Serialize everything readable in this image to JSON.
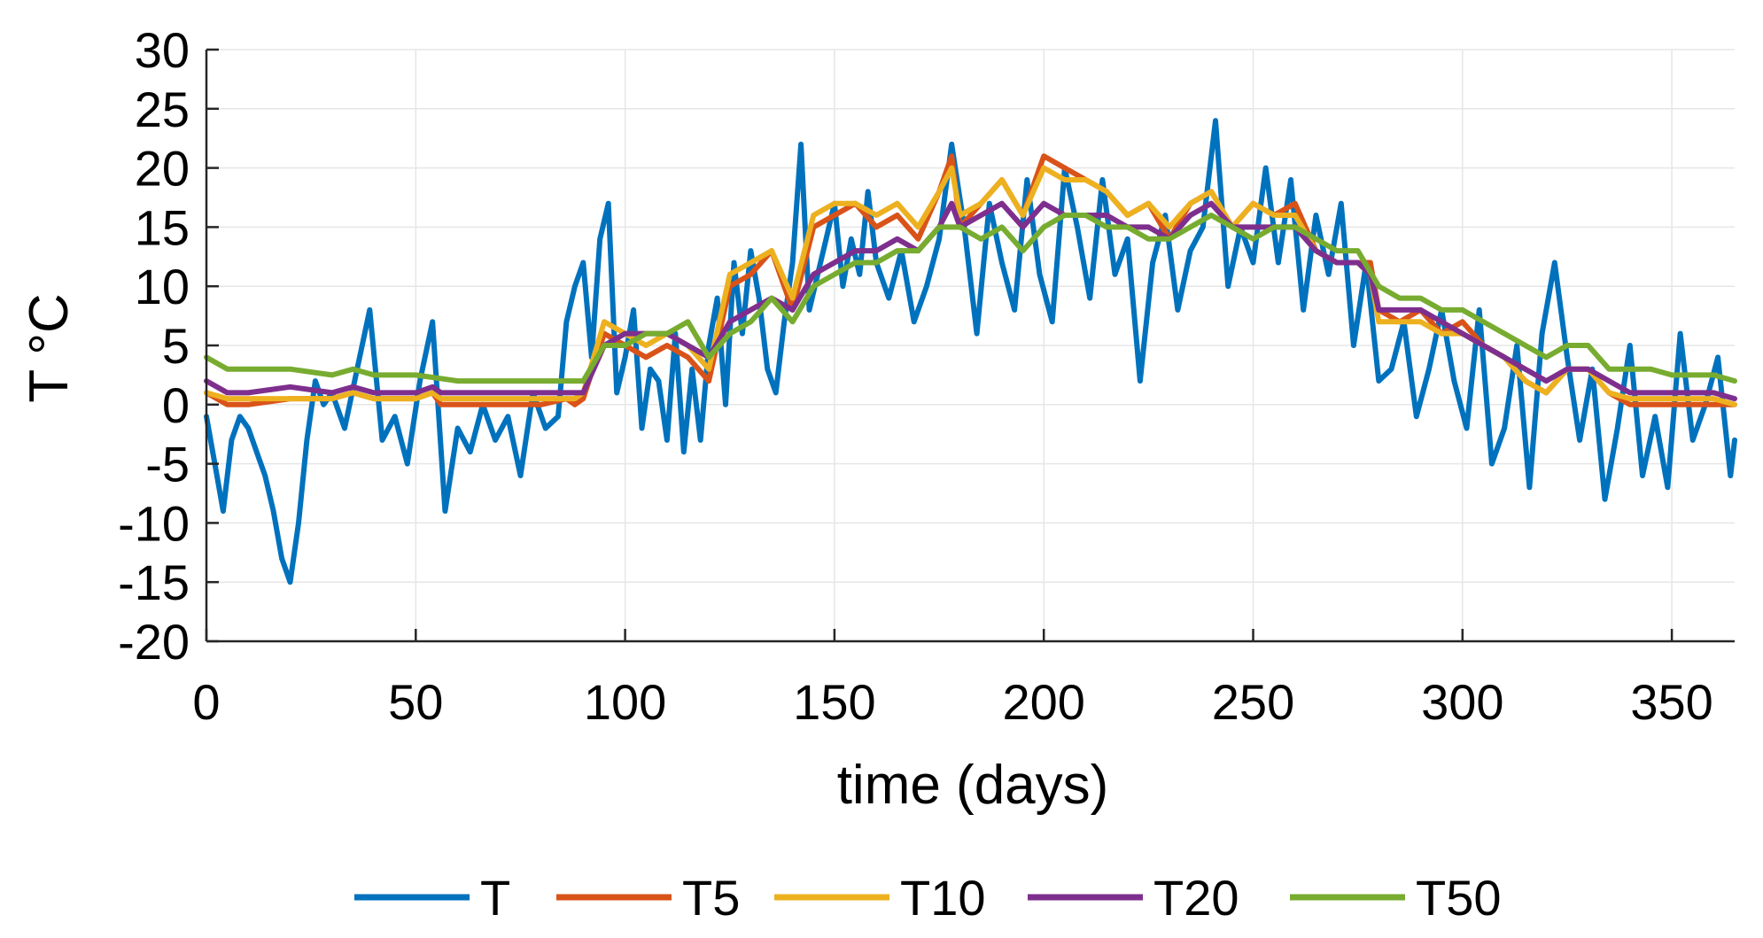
{
  "chart_data": {
    "type": "line",
    "title": "",
    "xlabel": "time (days)",
    "ylabel": "T °C",
    "xlim": [
      0,
      365
    ],
    "ylim": [
      -20,
      30
    ],
    "xticks": [
      0,
      50,
      100,
      150,
      200,
      250,
      300,
      350
    ],
    "yticks": [
      -20,
      -15,
      -10,
      -5,
      0,
      5,
      10,
      15,
      20,
      25,
      30
    ],
    "grid": true,
    "legend_position": "bottom",
    "series": [
      {
        "name": "T",
        "color": "#0072BD",
        "x": [
          0,
          2,
          4,
          6,
          8,
          10,
          12,
          14,
          16,
          18,
          20,
          22,
          24,
          26,
          28,
          30,
          33,
          36,
          39,
          42,
          45,
          48,
          51,
          54,
          57,
          60,
          63,
          66,
          69,
          72,
          75,
          78,
          81,
          84,
          86,
          88,
          90,
          92,
          94,
          96,
          98,
          100,
          102,
          104,
          106,
          108,
          110,
          112,
          114,
          116,
          118,
          120,
          122,
          124,
          126,
          128,
          130,
          132,
          134,
          136,
          138,
          140,
          142,
          144,
          146,
          148,
          150,
          152,
          154,
          156,
          158,
          160,
          163,
          166,
          169,
          172,
          175,
          178,
          181,
          184,
          187,
          190,
          193,
          196,
          199,
          202,
          205,
          208,
          211,
          214,
          217,
          220,
          223,
          226,
          229,
          232,
          235,
          238,
          241,
          244,
          247,
          250,
          253,
          256,
          259,
          262,
          265,
          268,
          271,
          274,
          277,
          280,
          283,
          286,
          289,
          292,
          295,
          298,
          301,
          304,
          307,
          310,
          313,
          316,
          319,
          322,
          325,
          328,
          331,
          334,
          337,
          340,
          343,
          346,
          349,
          352,
          355,
          358,
          361,
          364,
          365
        ],
        "values": [
          -1,
          -5,
          -9,
          -3,
          -1,
          -2,
          -4,
          -6,
          -9,
          -13,
          -15,
          -10,
          -3,
          2,
          0,
          1,
          -2,
          3,
          8,
          -3,
          -1,
          -5,
          2,
          7,
          -9,
          -2,
          -4,
          0,
          -3,
          -1,
          -6,
          1,
          -2,
          -1,
          7,
          10,
          12,
          4,
          14,
          17,
          1,
          4,
          8,
          -2,
          3,
          2,
          -3,
          6,
          -4,
          3,
          -3,
          5,
          9,
          0,
          12,
          6,
          13,
          9,
          3,
          1,
          7,
          12,
          22,
          8,
          11,
          14,
          17,
          10,
          14,
          11,
          18,
          12,
          9,
          13,
          7,
          10,
          14,
          22,
          15,
          6,
          17,
          12,
          8,
          19,
          11,
          7,
          20,
          15,
          9,
          19,
          11,
          14,
          2,
          12,
          16,
          8,
          13,
          15,
          24,
          10,
          15,
          12,
          20,
          12,
          19,
          8,
          16,
          11,
          17,
          5,
          12,
          2,
          3,
          7,
          -1,
          3,
          8,
          2,
          -2,
          8,
          -5,
          -2,
          5,
          -7,
          6,
          12,
          4,
          -3,
          3,
          -8,
          -2,
          5,
          -6,
          -1,
          -7,
          6,
          -3,
          0,
          4,
          -6,
          -3
        ]
      },
      {
        "name": "T5",
        "color": "#D95319",
        "x": [
          0,
          5,
          10,
          20,
          30,
          35,
          40,
          50,
          54,
          56,
          60,
          70,
          80,
          86,
          88,
          90,
          95,
          100,
          105,
          110,
          115,
          120,
          125,
          130,
          135,
          140,
          145,
          150,
          155,
          160,
          165,
          170,
          175,
          178,
          180,
          185,
          190,
          195,
          200,
          205,
          210,
          215,
          220,
          225,
          230,
          235,
          240,
          245,
          250,
          255,
          260,
          265,
          270,
          275,
          278,
          280,
          285,
          290,
          295,
          300,
          305,
          310,
          315,
          320,
          325,
          330,
          335,
          340,
          345,
          350,
          355,
          360,
          365
        ],
        "values": [
          1,
          0,
          0,
          0.5,
          0.5,
          1,
          0.5,
          0.5,
          1,
          0,
          0,
          0,
          0,
          0.5,
          0,
          0.5,
          6,
          5,
          4,
          5,
          4,
          2,
          10,
          11,
          13,
          8,
          15,
          16,
          17,
          15,
          16,
          14,
          18,
          21,
          15,
          17,
          19,
          16,
          21,
          20,
          19,
          18,
          16,
          17,
          14,
          17,
          18,
          15,
          17,
          16,
          17,
          13,
          12,
          12,
          12,
          8,
          7,
          8,
          6,
          7,
          5,
          4,
          2,
          1,
          3,
          3,
          1,
          0,
          0,
          0,
          0,
          0,
          0
        ]
      },
      {
        "name": "T10",
        "color": "#EDB120",
        "x": [
          0,
          5,
          10,
          20,
          30,
          35,
          40,
          50,
          54,
          56,
          60,
          70,
          80,
          86,
          88,
          90,
          95,
          100,
          105,
          110,
          115,
          120,
          125,
          130,
          135,
          140,
          145,
          150,
          155,
          160,
          165,
          170,
          175,
          178,
          180,
          185,
          190,
          195,
          200,
          205,
          210,
          215,
          220,
          225,
          230,
          235,
          240,
          245,
          250,
          255,
          260,
          265,
          270,
          275,
          278,
          280,
          285,
          290,
          295,
          300,
          305,
          310,
          315,
          320,
          325,
          330,
          335,
          340,
          345,
          350,
          355,
          360,
          365
        ],
        "values": [
          1,
          0.5,
          0.5,
          0.5,
          0.5,
          1,
          0.5,
          0.5,
          1,
          0.5,
          0.5,
          0.5,
          0.5,
          0.5,
          0.5,
          1,
          7,
          6,
          5,
          6,
          5,
          3,
          11,
          12,
          13,
          9,
          16,
          17,
          17,
          16,
          17,
          15,
          18,
          20,
          16,
          17,
          19,
          16,
          20,
          19,
          19,
          18,
          16,
          17,
          15,
          17,
          18,
          15,
          17,
          16,
          16,
          13,
          12,
          12,
          11,
          7,
          7,
          7,
          6,
          6,
          5,
          4,
          2,
          1,
          3,
          3,
          1,
          0.5,
          0.5,
          0.5,
          0.5,
          0.5,
          0
        ]
      },
      {
        "name": "T20",
        "color": "#7E2F8E",
        "x": [
          0,
          5,
          10,
          20,
          30,
          35,
          40,
          50,
          54,
          56,
          60,
          70,
          80,
          86,
          88,
          90,
          95,
          100,
          105,
          110,
          115,
          120,
          125,
          130,
          135,
          140,
          145,
          150,
          155,
          160,
          165,
          170,
          175,
          178,
          180,
          185,
          190,
          195,
          200,
          205,
          210,
          215,
          220,
          225,
          230,
          235,
          240,
          245,
          250,
          255,
          260,
          265,
          270,
          275,
          278,
          280,
          285,
          290,
          295,
          300,
          305,
          310,
          315,
          320,
          325,
          330,
          335,
          340,
          345,
          350,
          355,
          360,
          365
        ],
        "values": [
          2,
          1,
          1,
          1.5,
          1,
          1.5,
          1,
          1,
          1.5,
          1,
          1,
          1,
          1,
          1,
          1,
          1,
          5,
          6,
          6,
          6,
          5,
          4,
          7,
          8,
          9,
          8,
          11,
          12,
          13,
          13,
          14,
          13,
          15,
          17,
          15,
          16,
          17,
          15,
          17,
          16,
          16,
          16,
          15,
          15,
          14,
          16,
          17,
          15,
          15,
          15,
          15,
          13,
          12,
          12,
          11,
          8,
          8,
          8,
          7,
          6,
          5,
          4,
          3,
          2,
          3,
          3,
          2,
          1,
          1,
          1,
          1,
          1,
          0.5
        ]
      },
      {
        "name": "T50",
        "color": "#77AC30",
        "x": [
          0,
          5,
          10,
          20,
          30,
          35,
          40,
          50,
          60,
          70,
          80,
          86,
          88,
          90,
          95,
          100,
          105,
          110,
          115,
          120,
          125,
          130,
          135,
          140,
          145,
          150,
          155,
          160,
          165,
          170,
          175,
          180,
          185,
          190,
          195,
          200,
          205,
          210,
          215,
          220,
          225,
          230,
          235,
          240,
          245,
          250,
          255,
          260,
          265,
          270,
          275,
          280,
          285,
          290,
          295,
          300,
          305,
          310,
          315,
          320,
          325,
          330,
          335,
          340,
          345,
          350,
          355,
          360,
          365
        ],
        "values": [
          4,
          3,
          3,
          3,
          2.5,
          3,
          2.5,
          2.5,
          2,
          2,
          2,
          2,
          2,
          2,
          5,
          5,
          6,
          6,
          7,
          4,
          6,
          7,
          9,
          7,
          10,
          11,
          12,
          12,
          13,
          13,
          15,
          15,
          14,
          15,
          13,
          15,
          16,
          16,
          15,
          15,
          14,
          14,
          15,
          16,
          15,
          14,
          15,
          15,
          14,
          13,
          13,
          10,
          9,
          9,
          8,
          8,
          7,
          6,
          5,
          4,
          5,
          5,
          3,
          3,
          3,
          2.5,
          2.5,
          2.5,
          2
        ]
      }
    ]
  }
}
